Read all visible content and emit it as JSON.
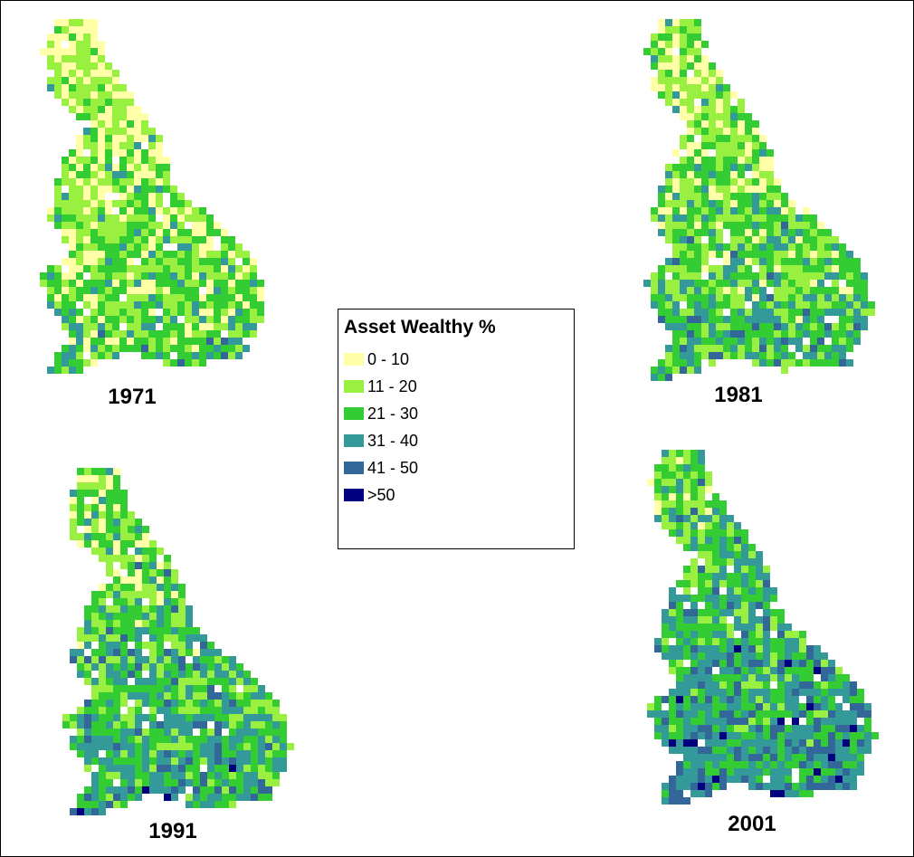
{
  "legend": {
    "title": "Asset Wealthy %",
    "items": [
      {
        "label": "0 - 10",
        "color": "#ffffa8"
      },
      {
        "label": "11 - 20",
        "color": "#99f040"
      },
      {
        "label": "21 - 30",
        "color": "#33cc33"
      },
      {
        "label": "31 - 40",
        "color": "#339999"
      },
      {
        "label": "41 - 50",
        "color": "#336699"
      },
      {
        "label": ">50",
        "color": "#000080"
      }
    ]
  },
  "maps": [
    {
      "year": "1971"
    },
    {
      "year": "1981"
    },
    {
      "year": "1991"
    },
    {
      "year": "2001"
    }
  ]
}
